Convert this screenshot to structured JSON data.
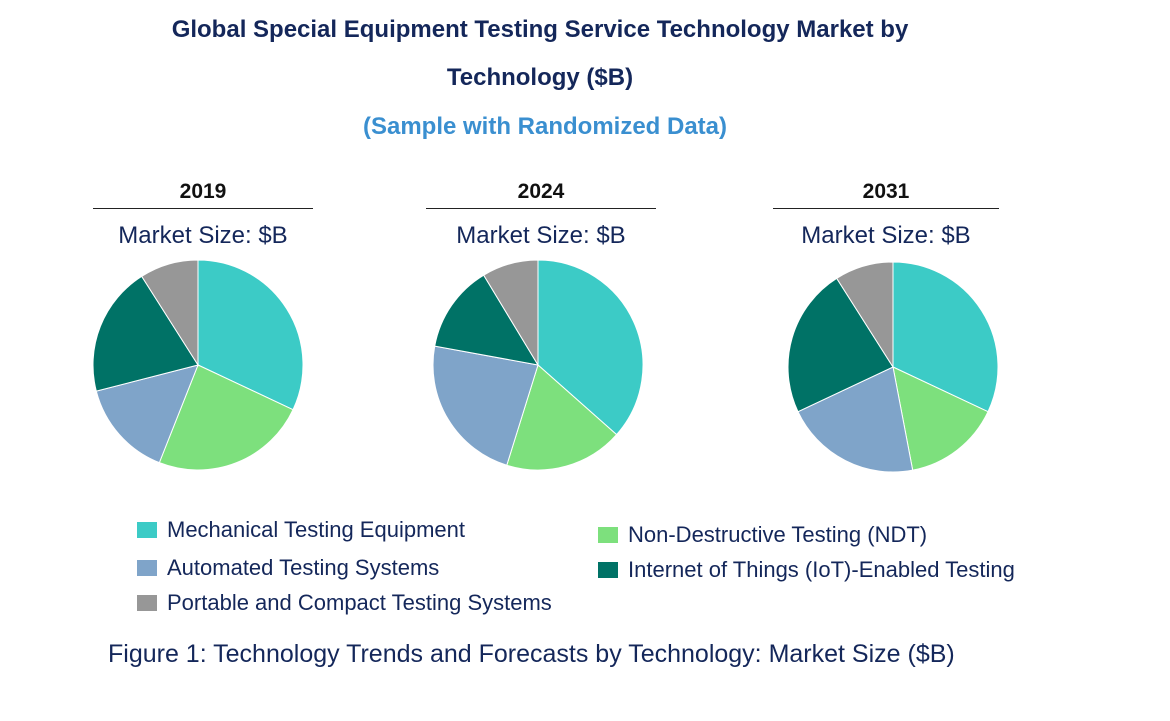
{
  "title_line1": "Global Special Equipment Testing Service Technology Market by",
  "title_line2": "Technology ($B)",
  "subtitle": "(Sample with Randomized Data)",
  "caption": "Figure 1: Technology Trends and Forecasts by Technology: Market Size ($B)",
  "colors": {
    "Mechanical Testing Equipment": "#3ccbc6",
    "Non-Destructive Testing (NDT)": "#7de07d",
    "Automated Testing Systems": "#7fa4c9",
    "Internet of Things (IoT)-Enabled Testing": "#007266",
    "Portable and Compact Testing Systems": "#979797"
  },
  "legend": [
    {
      "label": "Mechanical Testing Equipment",
      "color": "#3ccbc6"
    },
    {
      "label": "Non-Destructive Testing (NDT)",
      "color": "#7de07d"
    },
    {
      "label": "Automated Testing Systems",
      "color": "#7fa4c9"
    },
    {
      "label": "Internet of Things (IoT)-Enabled Testing",
      "color": "#007266"
    },
    {
      "label": "Portable and Compact Testing Systems",
      "color": "#979797"
    }
  ],
  "chart_data": [
    {
      "type": "pie",
      "title": "2019",
      "subtitle": "Market Size: $B",
      "categories": [
        "Mechanical Testing Equipment",
        "Non-Destructive Testing (NDT)",
        "Automated Testing Systems",
        "Internet of Things (IoT)-Enabled Testing",
        "Portable and Compact Testing Systems"
      ],
      "values": [
        32,
        24,
        15,
        20,
        9
      ]
    },
    {
      "type": "pie",
      "title": "2024",
      "subtitle": "Market Size: $B",
      "categories": [
        "Mechanical Testing Equipment",
        "Non-Destructive Testing (NDT)",
        "Automated Testing Systems",
        "Internet of Things (IoT)-Enabled Testing",
        "Portable and Compact Testing Systems"
      ],
      "values": [
        38,
        19,
        24,
        14,
        9
      ]
    },
    {
      "type": "pie",
      "title": "2031",
      "subtitle": "Market Size: $B",
      "categories": [
        "Mechanical Testing Equipment",
        "Non-Destructive Testing (NDT)",
        "Automated Testing Systems",
        "Internet of Things (IoT)-Enabled Testing",
        "Portable and Compact Testing Systems"
      ],
      "values": [
        32,
        15,
        21,
        23,
        9
      ]
    }
  ]
}
